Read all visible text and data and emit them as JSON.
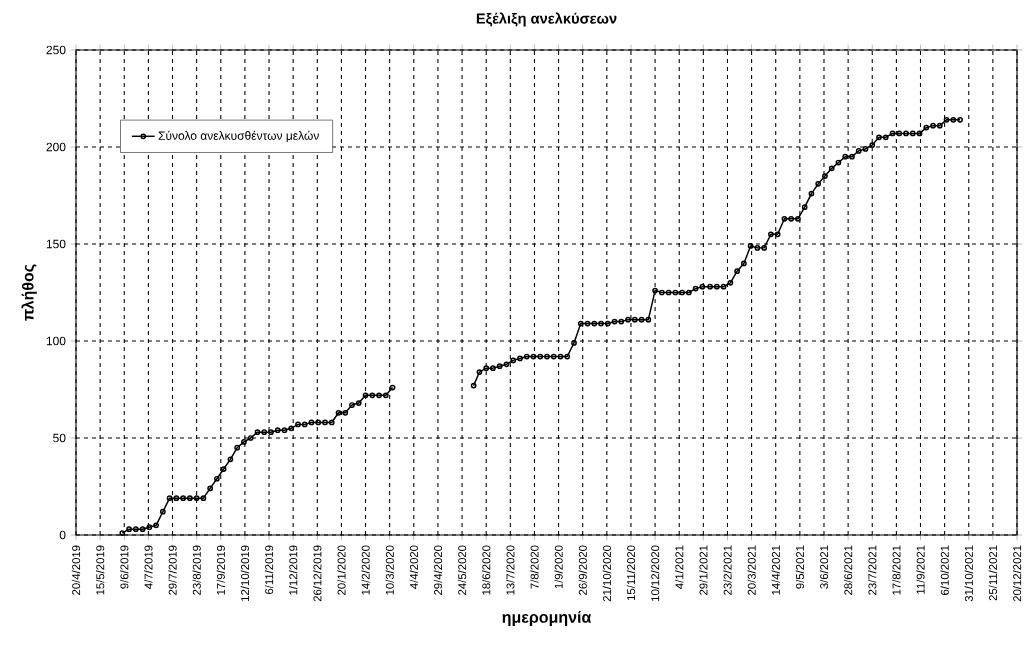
{
  "chart_data": {
    "type": "line",
    "title": "Εξέλιξη ανελκύσεων",
    "xlabel": "ημερομηνία",
    "ylabel": "πλήθος",
    "x": [
      "2019-06-07",
      "2019-06-14",
      "2019-06-21",
      "2019-06-28",
      "2019-07-05",
      "2019-07-12",
      "2019-07-19",
      "2019-07-26",
      "2019-08-02",
      "2019-08-09",
      "2019-08-16",
      "2019-08-23",
      "2019-08-30",
      "2019-09-06",
      "2019-09-13",
      "2019-09-20",
      "2019-09-27",
      "2019-10-04",
      "2019-10-11",
      "2019-10-18",
      "2019-10-25",
      "2019-11-01",
      "2019-11-08",
      "2019-11-15",
      "2019-11-22",
      "2019-11-29",
      "2019-12-06",
      "2019-12-13",
      "2019-12-20",
      "2019-12-27",
      "2020-01-03",
      "2020-01-10",
      "2020-01-17",
      "2020-01-24",
      "2020-01-31",
      "2020-02-07",
      "2020-02-14",
      "2020-02-21",
      "2020-02-28",
      "2020-03-06",
      "2020-03-13",
      "2020-04-20",
      "2020-06-05",
      "2020-06-11",
      "2020-06-18",
      "2020-06-25",
      "2020-07-02",
      "2020-07-09",
      "2020-07-16",
      "2020-07-23",
      "2020-07-30",
      "2020-08-06",
      "2020-08-13",
      "2020-08-20",
      "2020-08-27",
      "2020-09-03",
      "2020-09-10",
      "2020-09-17",
      "2020-09-24",
      "2020-10-01",
      "2020-10-08",
      "2020-10-15",
      "2020-10-22",
      "2020-10-29",
      "2020-11-05",
      "2020-11-12",
      "2020-11-19",
      "2020-11-26",
      "2020-12-03",
      "2020-12-10",
      "2020-12-17",
      "2020-12-24",
      "2020-12-31",
      "2021-01-07",
      "2021-01-14",
      "2021-01-21",
      "2021-01-28",
      "2021-02-05",
      "2021-02-12",
      "2021-02-19",
      "2021-02-26",
      "2021-03-05",
      "2021-03-12",
      "2021-03-19",
      "2021-03-26",
      "2021-04-02",
      "2021-04-09",
      "2021-04-16",
      "2021-04-23",
      "2021-04-30",
      "2021-05-07",
      "2021-05-14",
      "2021-05-21",
      "2021-05-28",
      "2021-06-04",
      "2021-06-11",
      "2021-06-18",
      "2021-06-25",
      "2021-07-02",
      "2021-07-09",
      "2021-07-16",
      "2021-07-23",
      "2021-07-30",
      "2021-08-06",
      "2021-08-13",
      "2021-08-20",
      "2021-08-27",
      "2021-09-03",
      "2021-09-10",
      "2021-09-17",
      "2021-09-24",
      "2021-10-01",
      "2021-10-08",
      "2021-10-15",
      "2021-10-22"
    ],
    "series": [
      {
        "name": "Σύνολο ανελκυσθέντων μελών",
        "color": "#000000",
        "values": [
          1,
          3,
          3,
          3,
          4,
          5,
          12,
          19,
          19,
          19,
          19,
          19,
          19,
          24,
          29,
          34,
          39,
          45,
          48,
          50,
          53,
          53,
          53,
          54,
          54,
          55,
          57,
          57,
          58,
          58,
          58,
          58,
          63,
          63,
          67,
          68,
          72,
          72,
          72,
          72,
          76,
          null,
          77,
          84,
          86,
          86,
          87,
          88,
          90,
          91,
          92,
          92,
          92,
          92,
          92,
          92,
          92,
          99,
          109,
          109,
          109,
          109,
          109,
          110,
          110,
          111,
          111,
          111,
          111,
          126,
          125,
          125,
          125,
          125,
          125,
          127,
          128,
          128,
          128,
          128,
          130,
          136,
          140,
          149,
          148,
          148,
          155,
          155,
          163,
          163,
          163,
          169,
          176,
          181,
          185,
          189,
          192,
          195,
          195,
          198,
          199,
          201,
          205,
          205,
          207,
          207,
          207,
          207,
          207,
          210,
          211,
          211,
          214,
          214,
          214
        ]
      }
    ],
    "xlim": [
      "2019-04-20",
      "2021-12-20"
    ],
    "ylim": [
      0,
      250
    ],
    "xticks": [
      {
        "value": "2019-04-20",
        "label": "20/4/2019"
      },
      {
        "value": "2019-05-15",
        "label": "15/5/2019"
      },
      {
        "value": "2019-06-09",
        "label": "9/6/2019"
      },
      {
        "value": "2019-07-04",
        "label": "4/7/2019"
      },
      {
        "value": "2019-07-29",
        "label": "29/7/2019"
      },
      {
        "value": "2019-08-23",
        "label": "23/8/2019"
      },
      {
        "value": "2019-09-17",
        "label": "17/9/2019"
      },
      {
        "value": "2019-10-12",
        "label": "12/10/2019"
      },
      {
        "value": "2019-11-06",
        "label": "6/11/2019"
      },
      {
        "value": "2019-12-01",
        "label": "1/12/2019"
      },
      {
        "value": "2019-12-26",
        "label": "26/12/2019"
      },
      {
        "value": "2020-01-20",
        "label": "20/1/2020"
      },
      {
        "value": "2020-02-14",
        "label": "14/2/2020"
      },
      {
        "value": "2020-03-10",
        "label": "10/3/2020"
      },
      {
        "value": "2020-04-04",
        "label": "4/4/2020"
      },
      {
        "value": "2020-04-29",
        "label": "29/4/2020"
      },
      {
        "value": "2020-05-24",
        "label": "24/5/2020"
      },
      {
        "value": "2020-06-18",
        "label": "18/6/2020"
      },
      {
        "value": "2020-07-13",
        "label": "13/7/2020"
      },
      {
        "value": "2020-08-07",
        "label": "7/8/2020"
      },
      {
        "value": "2020-09-01",
        "label": "1/9/2020"
      },
      {
        "value": "2020-09-26",
        "label": "26/9/2020"
      },
      {
        "value": "2020-10-21",
        "label": "21/10/2020"
      },
      {
        "value": "2020-11-15",
        "label": "15/11/2020"
      },
      {
        "value": "2020-12-10",
        "label": "10/12/2020"
      },
      {
        "value": "2021-01-04",
        "label": "4/1/2021"
      },
      {
        "value": "2021-01-29",
        "label": "29/1/2021"
      },
      {
        "value": "2021-02-23",
        "label": "23/2/2021"
      },
      {
        "value": "2021-03-20",
        "label": "20/3/2021"
      },
      {
        "value": "2021-04-14",
        "label": "14/4/2021"
      },
      {
        "value": "2021-05-09",
        "label": "9/5/2021"
      },
      {
        "value": "2021-06-03",
        "label": "3/6/2021"
      },
      {
        "value": "2021-06-28",
        "label": "28/6/2021"
      },
      {
        "value": "2021-07-23",
        "label": "23/7/2021"
      },
      {
        "value": "2021-08-17",
        "label": "17/8/2021"
      },
      {
        "value": "2021-09-11",
        "label": "11/9/2021"
      },
      {
        "value": "2021-10-06",
        "label": "6/10/2021"
      },
      {
        "value": "2021-10-31",
        "label": "31/10/2021"
      },
      {
        "value": "2021-11-25",
        "label": "25/11/2021"
      },
      {
        "value": "2021-12-20",
        "label": "20/12/2021"
      }
    ],
    "yticks": [
      0,
      50,
      100,
      150,
      200,
      250
    ],
    "grid": true,
    "legend": "top left",
    "marker": "circle",
    "line_style": "solid"
  }
}
